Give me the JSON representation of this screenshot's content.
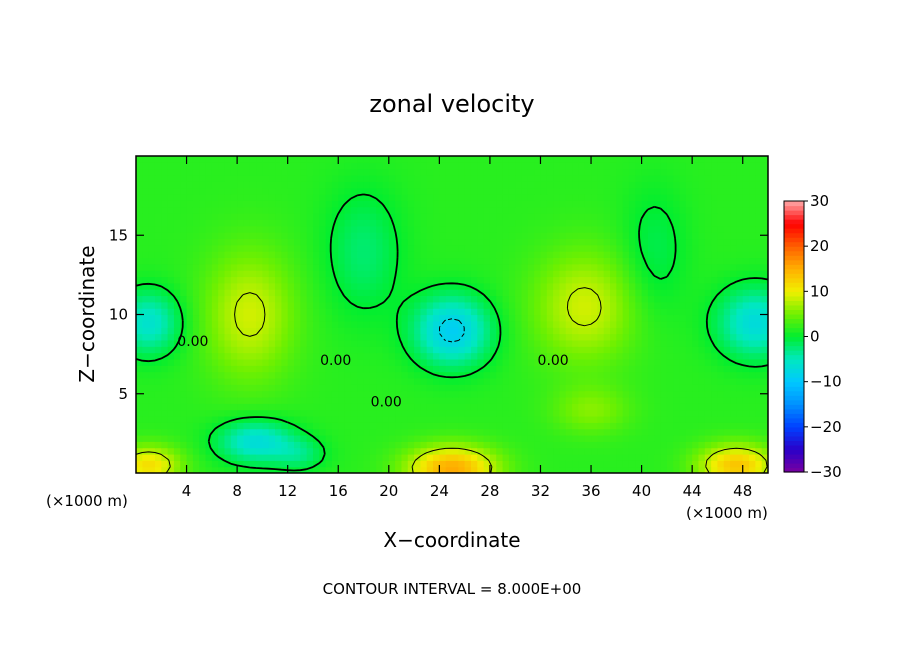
{
  "chart_data": {
    "type": "heatmap",
    "title": "zonal velocity",
    "xlabel": "X−coordinate",
    "ylabel": "Z−coordinate",
    "x_unit_label": "(×1000 m)",
    "xlim": [
      0,
      50
    ],
    "ylim": [
      0,
      20
    ],
    "x_ticks": [
      4,
      8,
      12,
      16,
      20,
      24,
      28,
      32,
      36,
      40,
      44,
      48
    ],
    "x_tick_labels": [
      "4",
      "8",
      "12",
      "16",
      "20",
      "24",
      "28",
      "32",
      "36",
      "40",
      "44",
      "48"
    ],
    "y_ticks": [
      5,
      10,
      15
    ],
    "y_tick_labels": [
      "5",
      "10",
      "15"
    ],
    "footer": "CONTOUR INTERVAL = 8.000E+00",
    "contour_interval": 8.0,
    "contour_labels": [
      {
        "text": "0.00",
        "x": 4.5,
        "z": 8.0
      },
      {
        "text": "0.00",
        "x": 15.8,
        "z": 6.8
      },
      {
        "text": "0.00",
        "x": 19.8,
        "z": 4.2
      },
      {
        "text": "0.00",
        "x": 33.0,
        "z": 6.8
      }
    ],
    "colorbar": {
      "range": [
        -30,
        30
      ],
      "ticks": [
        30,
        20,
        10,
        0,
        -10,
        -20,
        -30
      ],
      "tick_labels": [
        "30",
        "20",
        "10",
        "0",
        "−10",
        "−20",
        "−30"
      ],
      "stops": [
        {
          "v": -30,
          "color": "#7a00a0"
        },
        {
          "v": -25,
          "color": "#2a00c8"
        },
        {
          "v": -20,
          "color": "#0040ff"
        },
        {
          "v": -15,
          "color": "#0090ff"
        },
        {
          "v": -10,
          "color": "#00c8ff"
        },
        {
          "v": -5,
          "color": "#00e8c0"
        },
        {
          "v": 0,
          "color": "#00ee30"
        },
        {
          "v": 5,
          "color": "#70f000"
        },
        {
          "v": 10,
          "color": "#f0f000"
        },
        {
          "v": 15,
          "color": "#ffb000"
        },
        {
          "v": 20,
          "color": "#ff6000"
        },
        {
          "v": 25,
          "color": "#ff0000"
        },
        {
          "v": 30,
          "color": "#ffa8a8"
        }
      ]
    },
    "field_features": [
      {
        "x": 25.0,
        "z": 9.0,
        "amp": -11.0,
        "sx": 3.0,
        "sz": 2.2
      },
      {
        "x": 49.0,
        "z": 9.5,
        "amp": -9.0,
        "sx": 3.0,
        "sz": 2.2
      },
      {
        "x": 1.0,
        "z": 9.5,
        "amp": -8.0,
        "sx": 2.5,
        "sz": 2.0
      },
      {
        "x": 9.5,
        "z": 2.0,
        "amp": -9.0,
        "sx": 3.0,
        "sz": 1.3
      },
      {
        "x": 13.0,
        "z": 1.2,
        "amp": -4.0,
        "sx": 2.0,
        "sz": 1.0
      },
      {
        "x": 25.0,
        "z": 0.3,
        "amp": 14.0,
        "sx": 3.5,
        "sz": 1.4
      },
      {
        "x": 47.5,
        "z": 0.5,
        "amp": 12.0,
        "sx": 3.0,
        "sz": 1.3
      },
      {
        "x": 1.0,
        "z": 0.5,
        "amp": 10.0,
        "sx": 2.5,
        "sz": 1.2
      },
      {
        "x": 9.0,
        "z": 10.0,
        "amp": 7.0,
        "sx": 3.5,
        "sz": 4.0
      },
      {
        "x": 35.5,
        "z": 10.5,
        "amp": 7.0,
        "sx": 4.0,
        "sz": 3.5
      },
      {
        "x": 36.0,
        "z": 4.0,
        "amp": 4.0,
        "sx": 3.0,
        "sz": 1.5
      },
      {
        "x": 18.0,
        "z": 14.0,
        "amp": -4.0,
        "sx": 3.0,
        "sz": 4.0
      },
      {
        "x": 41.0,
        "z": 14.0,
        "amp": -3.0,
        "sx": 2.5,
        "sz": 4.0
      }
    ]
  }
}
